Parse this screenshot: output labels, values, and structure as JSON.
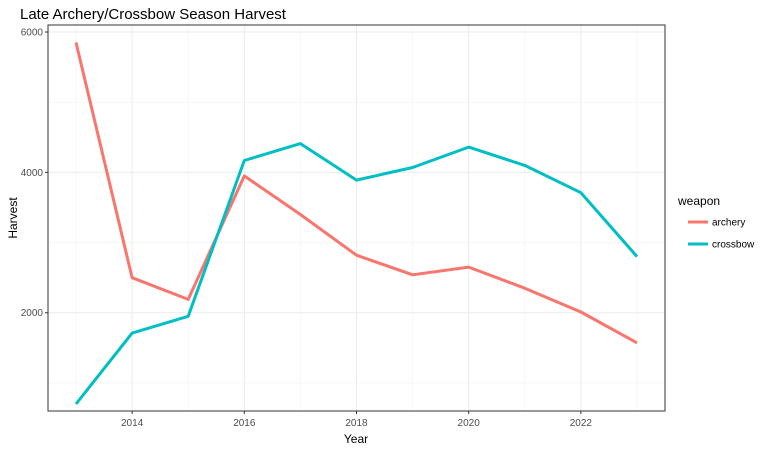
{
  "chart_data": {
    "type": "line",
    "title": "Late Archery/Crossbow Season Harvest",
    "xlabel": "Year",
    "ylabel": "Harvest",
    "xlim": [
      2012.5,
      2023.5
    ],
    "ylim": [
      600,
      6100
    ],
    "x_ticks": [
      "2014",
      "2016",
      "2018",
      "2020",
      "2022"
    ],
    "y_ticks": [
      "2000",
      "4000",
      "6000"
    ],
    "grid": true,
    "legend_position": "right",
    "legend_title": "weapon",
    "x": [
      2013,
      2014,
      2015,
      2016,
      2017,
      2018,
      2019,
      2020,
      2021,
      2022,
      2023
    ],
    "series": [
      {
        "name": "archery",
        "color": "#f8766d",
        "values": [
          5850,
          2500,
          2190,
          3950,
          3400,
          2820,
          2540,
          2650,
          2350,
          2010,
          1570
        ]
      },
      {
        "name": "crossbow",
        "color": "#00bfc4",
        "values": [
          700,
          1710,
          1950,
          4170,
          4410,
          3890,
          4070,
          4360,
          4100,
          3710,
          2800
        ]
      }
    ]
  }
}
